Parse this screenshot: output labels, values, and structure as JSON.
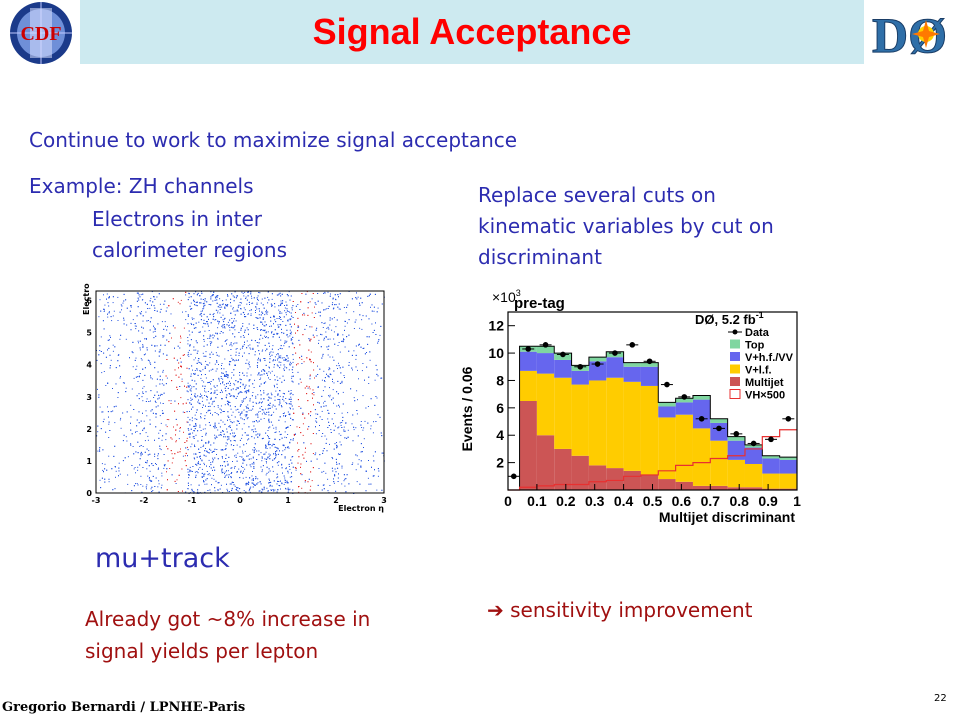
{
  "header": {
    "title": "Signal Acceptance"
  },
  "logos": {
    "left_text": "CDF",
    "right_text": "DØ"
  },
  "content": {
    "line1": "Continue to work to maximize signal acceptance",
    "line2": "Example: ZH channels",
    "left_sub": [
      "Electrons in inter",
      "calorimeter regions"
    ],
    "right_text": [
      "Replace several cuts on",
      "kinematic variables by cut on",
      "discriminant"
    ],
    "mu_track": "mu+track",
    "left_bottom": [
      "Already got ~8% increase in",
      "signal yields per lepton"
    ],
    "right_bottom": "sensitivity improvement",
    "arrow": "➔"
  },
  "scatter_plot": {
    "ylabel": "Electron φ",
    "xlabel": "Electron η",
    "x_ticks": [
      "-3",
      "-2",
      "-1",
      "0",
      "1",
      "2",
      "3"
    ],
    "y_ticks": [
      "0",
      "1",
      "2",
      "3",
      "4",
      "5",
      "6"
    ]
  },
  "chart_data": {
    "type": "bar",
    "title": "",
    "annotation_left": "pre-tag",
    "annotation_right": "DØ, 5.2 fb",
    "annotation_right_sup": "-1",
    "multiplier": "×10",
    "multiplier_sup": "3",
    "xlabel": "Multijet discriminant",
    "ylabel": "Events / 0.06",
    "xlim": [
      0,
      1
    ],
    "ylim": [
      0,
      13
    ],
    "x_ticks": [
      "0",
      "0.1",
      "0.2",
      "0.3",
      "0.4",
      "0.5",
      "0.6",
      "0.7",
      "0.8",
      "0.9",
      "1"
    ],
    "y_ticks": [
      "2",
      "4",
      "6",
      "8",
      "10",
      "12"
    ],
    "bin_edges": [
      0,
      0.04,
      0.1,
      0.16,
      0.22,
      0.28,
      0.34,
      0.4,
      0.46,
      0.52,
      0.58,
      0.64,
      0.7,
      0.76,
      0.82,
      0.88,
      0.94,
      1.0
    ],
    "series": [
      {
        "name": "Multijet",
        "color": "#cc5555",
        "values": [
          0,
          6.5,
          4.0,
          3.0,
          2.5,
          1.8,
          1.6,
          1.4,
          1.1,
          0.8,
          0.6,
          0.3,
          0.3,
          0.2,
          0.2,
          0.1,
          0.1
        ]
      },
      {
        "name": "V+l.f.",
        "color": "#ffcc00",
        "values": [
          0,
          2.2,
          4.5,
          5.2,
          5.2,
          6.2,
          6.6,
          6.5,
          6.5,
          4.5,
          4.9,
          4.2,
          3.3,
          2.0,
          1.7,
          1.1,
          1.1
        ]
      },
      {
        "name": "V+h.f./VV",
        "color": "#6666ee",
        "values": [
          0,
          1.4,
          1.5,
          1.3,
          1.0,
          1.4,
          1.5,
          1.1,
          1.4,
          0.8,
          0.9,
          2.1,
          1.3,
          1.4,
          1.2,
          1.1,
          1.0
        ]
      },
      {
        "name": "Top",
        "color": "#7fd6a0",
        "values": [
          0,
          0.4,
          0.5,
          0.5,
          0.4,
          0.3,
          0.4,
          0.3,
          0.3,
          0.3,
          0.3,
          0.3,
          0.3,
          0.3,
          0.2,
          0.2,
          0.2
        ]
      }
    ],
    "data": {
      "name": "Data",
      "x": [
        0.02,
        0.07,
        0.13,
        0.19,
        0.25,
        0.31,
        0.37,
        0.43,
        0.49,
        0.55,
        0.61,
        0.67,
        0.73,
        0.79,
        0.85,
        0.91,
        0.97
      ],
      "y": [
        1.0,
        10.3,
        10.6,
        9.9,
        9.0,
        9.2,
        10.0,
        10.6,
        9.4,
        7.7,
        6.8,
        5.2,
        4.5,
        4.1,
        3.4,
        3.7,
        5.2
      ]
    },
    "signal": {
      "name": "VH×500",
      "color": "#e83030",
      "values": [
        0,
        0.2,
        0.3,
        0.4,
        0.4,
        0.6,
        0.7,
        1.0,
        1.1,
        1.4,
        1.8,
        2.0,
        2.3,
        2.5,
        3.0,
        3.9,
        4.4
      ]
    },
    "legend": [
      "Data",
      "Top",
      "V+h.f./VV",
      "V+l.f.",
      "Multijet",
      "VH×500"
    ]
  },
  "footer": {
    "author": "Gregorio Bernardi / LPNHE-Paris",
    "page": "22"
  }
}
